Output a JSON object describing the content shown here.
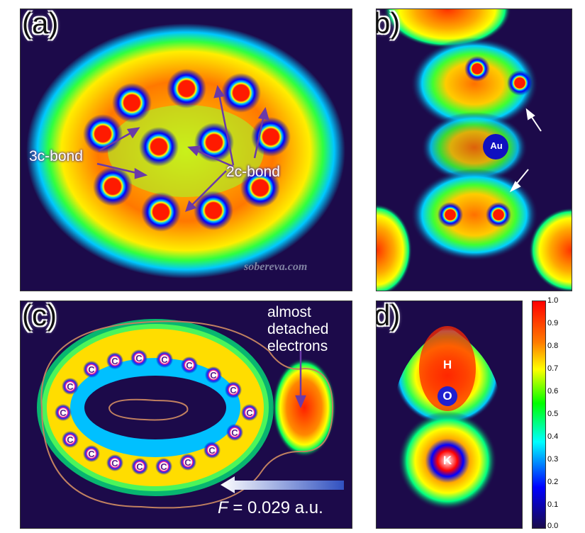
{
  "panels": {
    "a": {
      "label": "(a)",
      "annotations": {
        "three_c": "3c-bond",
        "two_c": "2c-bond"
      },
      "watermark": "sobereva.com"
    },
    "b": {
      "label": "(b)",
      "atom": "Au"
    },
    "c": {
      "label": "(c)",
      "atom": "C",
      "annotation": [
        "almost",
        "detached",
        "electrons"
      ],
      "field": "= 0.029 a.u.",
      "field_symbol": "F"
    },
    "d": {
      "label": "(d)",
      "atoms": [
        "H",
        "O",
        "K"
      ]
    }
  },
  "colorbar": {
    "ticks": [
      "1.0",
      "0.9",
      "0.8",
      "0.7",
      "0.6",
      "0.5",
      "0.4",
      "0.3",
      "0.2",
      "0.1",
      "0.0"
    ],
    "colors": [
      "#ff0000",
      "#ff7a00",
      "#ffff00",
      "#00ff00",
      "#00ffff",
      "#0000ff",
      "#1a0a4a"
    ]
  }
}
